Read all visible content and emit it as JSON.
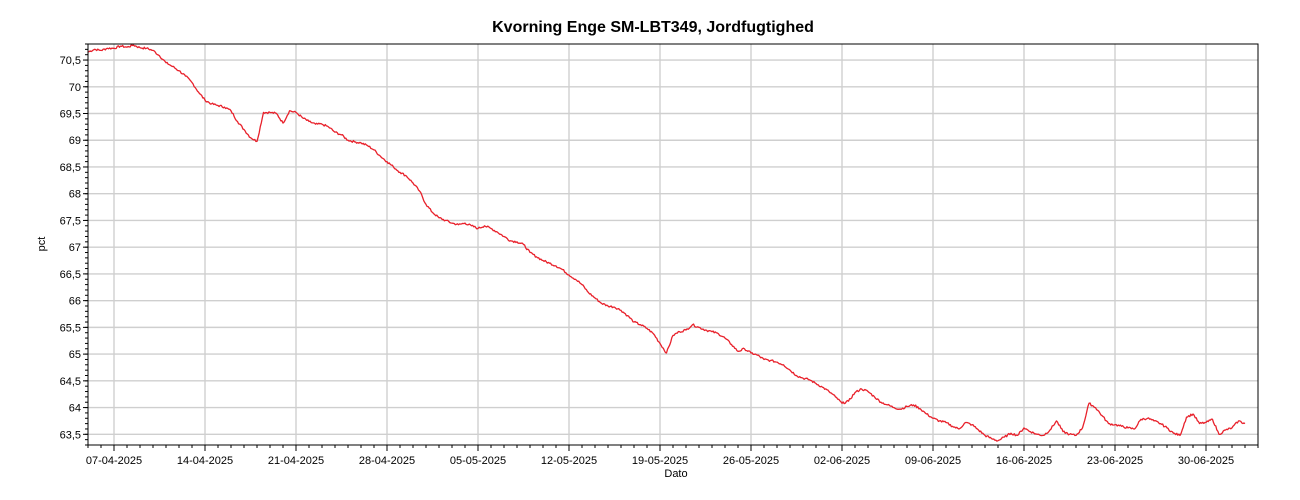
{
  "chart_data": {
    "type": "line",
    "title": "Kvorning Enge SM-LBT349, Jordfugtighed",
    "xlabel": "Dato",
    "ylabel": "pct",
    "grid": true,
    "legend": "none",
    "line_color": "#e8212b",
    "x_ticks": [
      "07-04-2025",
      "14-04-2025",
      "21-04-2025",
      "28-04-2025",
      "05-05-2025",
      "12-05-2025",
      "19-05-2025",
      "26-05-2025",
      "02-06-2025",
      "09-06-2025",
      "16-06-2025",
      "23-06-2025",
      "30-06-2025"
    ],
    "y_ticks": [
      "63,5",
      "64",
      "64,5",
      "65",
      "65,5",
      "66",
      "66,5",
      "67",
      "67,5",
      "68",
      "68,5",
      "69",
      "69,5",
      "70",
      "70,5"
    ],
    "xlim": [
      "2025-04-05T00:00",
      "2025-07-04T00:00"
    ],
    "ylim": [
      63.3,
      70.8
    ],
    "series": [
      {
        "x": [
          "2025-04-05T00:00",
          "2025-04-05T12:00",
          "2025-04-06T00:00",
          "2025-04-06T12:00",
          "2025-04-07T00:00",
          "2025-04-07T12:00",
          "2025-04-08T00:00",
          "2025-04-08T12:00",
          "2025-04-09T00:00",
          "2025-04-09T12:00",
          "2025-04-10T00:00",
          "2025-04-10T12:00",
          "2025-04-11T00:00",
          "2025-04-11T12:00",
          "2025-04-12T00:00",
          "2025-04-12T12:00",
          "2025-04-13T00:00",
          "2025-04-13T12:00",
          "2025-04-14T00:00",
          "2025-04-14T12:00",
          "2025-04-15T00:00",
          "2025-04-15T12:00",
          "2025-04-16T00:00",
          "2025-04-16T12:00",
          "2025-04-17T00:00",
          "2025-04-17T12:00",
          "2025-04-18T00:00",
          "2025-04-18T12:00",
          "2025-04-19T00:00",
          "2025-04-19T12:00",
          "2025-04-20T00:00",
          "2025-04-20T12:00",
          "2025-04-21T00:00",
          "2025-04-21T12:00",
          "2025-04-22T00:00",
          "2025-04-22T12:00",
          "2025-04-23T00:00",
          "2025-04-23T12:00",
          "2025-04-24T00:00",
          "2025-04-24T12:00",
          "2025-04-25T00:00",
          "2025-04-25T12:00",
          "2025-04-26T00:00",
          "2025-04-26T12:00",
          "2025-04-27T00:00",
          "2025-04-27T12:00",
          "2025-04-28T00:00",
          "2025-04-28T12:00",
          "2025-04-29T00:00",
          "2025-04-29T12:00",
          "2025-04-30T00:00",
          "2025-04-30T12:00",
          "2025-05-01T00:00",
          "2025-05-01T12:00",
          "2025-05-02T00:00",
          "2025-05-02T12:00",
          "2025-05-03T00:00",
          "2025-05-03T12:00",
          "2025-05-04T00:00",
          "2025-05-04T12:00",
          "2025-05-05T00:00",
          "2025-05-05T12:00",
          "2025-05-06T00:00",
          "2025-05-06T12:00",
          "2025-05-07T00:00",
          "2025-05-07T12:00",
          "2025-05-08T00:00",
          "2025-05-08T12:00",
          "2025-05-09T00:00",
          "2025-05-09T12:00",
          "2025-05-10T00:00",
          "2025-05-10T12:00",
          "2025-05-11T00:00",
          "2025-05-11T12:00",
          "2025-05-12T00:00",
          "2025-05-12T12:00",
          "2025-05-13T00:00",
          "2025-05-13T12:00",
          "2025-05-14T00:00",
          "2025-05-14T12:00",
          "2025-05-15T00:00",
          "2025-05-15T12:00",
          "2025-05-16T00:00",
          "2025-05-16T12:00",
          "2025-05-17T00:00",
          "2025-05-17T12:00",
          "2025-05-18T00:00",
          "2025-05-18T12:00",
          "2025-05-19T00:00",
          "2025-05-19T12:00",
          "2025-05-20T00:00",
          "2025-05-20T12:00",
          "2025-05-21T00:00",
          "2025-05-21T12:00",
          "2025-05-22T00:00",
          "2025-05-22T12:00",
          "2025-05-23T00:00",
          "2025-05-23T12:00",
          "2025-05-24T00:00",
          "2025-05-24T12:00",
          "2025-05-25T00:00",
          "2025-05-25T12:00",
          "2025-05-26T00:00",
          "2025-05-26T12:00",
          "2025-05-27T00:00",
          "2025-05-27T12:00",
          "2025-05-28T00:00",
          "2025-05-28T12:00",
          "2025-05-29T00:00",
          "2025-05-29T12:00",
          "2025-05-30T00:00",
          "2025-05-30T12:00",
          "2025-05-31T00:00",
          "2025-05-31T12:00",
          "2025-06-01T00:00",
          "2025-06-01T12:00",
          "2025-06-02T00:00",
          "2025-06-02T12:00",
          "2025-06-03T00:00",
          "2025-06-03T12:00",
          "2025-06-04T00:00",
          "2025-06-04T12:00",
          "2025-06-05T00:00",
          "2025-06-05T12:00",
          "2025-06-06T00:00",
          "2025-06-06T12:00",
          "2025-06-07T00:00",
          "2025-06-07T12:00",
          "2025-06-08T00:00",
          "2025-06-08T12:00",
          "2025-06-09T00:00",
          "2025-06-09T12:00",
          "2025-06-10T00:00",
          "2025-06-10T12:00",
          "2025-06-11T00:00",
          "2025-06-11T12:00",
          "2025-06-12T00:00",
          "2025-06-12T12:00",
          "2025-06-13T00:00",
          "2025-06-13T12:00",
          "2025-06-14T00:00",
          "2025-06-14T12:00",
          "2025-06-15T00:00",
          "2025-06-15T12:00",
          "2025-06-16T00:00",
          "2025-06-16T12:00",
          "2025-06-17T00:00",
          "2025-06-17T12:00",
          "2025-06-18T00:00",
          "2025-06-18T12:00",
          "2025-06-19T00:00",
          "2025-06-19T12:00",
          "2025-06-20T00:00",
          "2025-06-20T12:00",
          "2025-06-21T00:00",
          "2025-06-21T12:00",
          "2025-06-22T00:00",
          "2025-06-22T12:00",
          "2025-06-23T00:00",
          "2025-06-23T12:00",
          "2025-06-24T00:00",
          "2025-06-24T12:00",
          "2025-06-25T00:00",
          "2025-06-25T12:00",
          "2025-06-26T00:00",
          "2025-06-26T12:00",
          "2025-06-27T00:00",
          "2025-06-27T12:00",
          "2025-06-28T00:00",
          "2025-06-28T12:00",
          "2025-06-29T00:00",
          "2025-06-29T12:00",
          "2025-06-30T00:00",
          "2025-06-30T12:00",
          "2025-07-01T00:00",
          "2025-07-01T12:00",
          "2025-07-02T00:00",
          "2025-07-02T12:00",
          "2025-07-03T00:00"
        ],
        "y": [
          70.65,
          70.7,
          70.68,
          70.72,
          70.72,
          70.76,
          70.74,
          70.78,
          70.73,
          70.72,
          70.68,
          70.58,
          70.45,
          70.38,
          70.3,
          70.2,
          70.08,
          69.9,
          69.75,
          69.68,
          69.65,
          69.62,
          69.55,
          69.35,
          69.2,
          69.05,
          68.98,
          69.52,
          69.52,
          69.5,
          69.32,
          69.55,
          69.52,
          69.42,
          69.35,
          69.3,
          69.3,
          69.25,
          69.15,
          69.1,
          69.0,
          68.97,
          68.95,
          68.9,
          68.82,
          68.7,
          68.6,
          68.5,
          68.4,
          68.33,
          68.2,
          68.05,
          67.8,
          67.65,
          67.55,
          67.5,
          67.45,
          67.42,
          67.45,
          67.4,
          67.35,
          67.4,
          67.35,
          67.28,
          67.2,
          67.12,
          67.1,
          67.05,
          66.9,
          66.82,
          66.75,
          66.7,
          66.65,
          66.58,
          66.48,
          66.4,
          66.3,
          66.15,
          66.05,
          65.95,
          65.9,
          65.88,
          65.82,
          65.72,
          65.6,
          65.55,
          65.48,
          65.38,
          65.2,
          65.02,
          65.35,
          65.42,
          65.45,
          65.55,
          65.5,
          65.45,
          65.42,
          65.38,
          65.3,
          65.18,
          65.05,
          65.1,
          65.02,
          64.98,
          64.9,
          64.88,
          64.85,
          64.8,
          64.7,
          64.6,
          64.55,
          64.52,
          64.45,
          64.38,
          64.3,
          64.2,
          64.08,
          64.12,
          64.28,
          64.35,
          64.3,
          64.2,
          64.1,
          64.05,
          64.0,
          63.97,
          64.02,
          64.05,
          63.98,
          63.88,
          63.8,
          63.75,
          63.72,
          63.65,
          63.6,
          63.72,
          63.68,
          63.58,
          63.48,
          63.42,
          63.38,
          63.45,
          63.52,
          63.48,
          63.62,
          63.55,
          63.5,
          63.48,
          63.58,
          63.75,
          63.55,
          63.5,
          63.48,
          63.62,
          64.08,
          64.0,
          63.85,
          63.7,
          63.68,
          63.65,
          63.62,
          63.6,
          63.78,
          63.8,
          63.75,
          63.7,
          63.62,
          63.52,
          63.48,
          63.82,
          63.88,
          63.7,
          63.72,
          63.78,
          63.5,
          63.58,
          63.62,
          63.75,
          63.7
        ]
      }
    ]
  }
}
